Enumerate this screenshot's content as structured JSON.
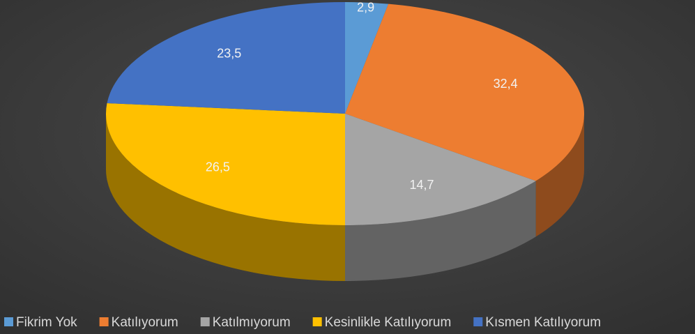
{
  "chart_data": {
    "type": "pie3d",
    "categories": [
      "Fikrim Yok",
      "Katılıyorum",
      "Katılmıyorum",
      "Kesinlikle Katılıyorum",
      "Kısmen Katılıyorum"
    ],
    "values": [
      2.9,
      32.4,
      14.7,
      26.5,
      23.5
    ],
    "value_labels": [
      "2,9",
      "32,4",
      "14,7",
      "26,5",
      "23,5"
    ],
    "colors": [
      "#5b9bd5",
      "#ed7d31",
      "#a5a5a5",
      "#ffc000",
      "#4472c4"
    ],
    "legend": "bottom"
  }
}
